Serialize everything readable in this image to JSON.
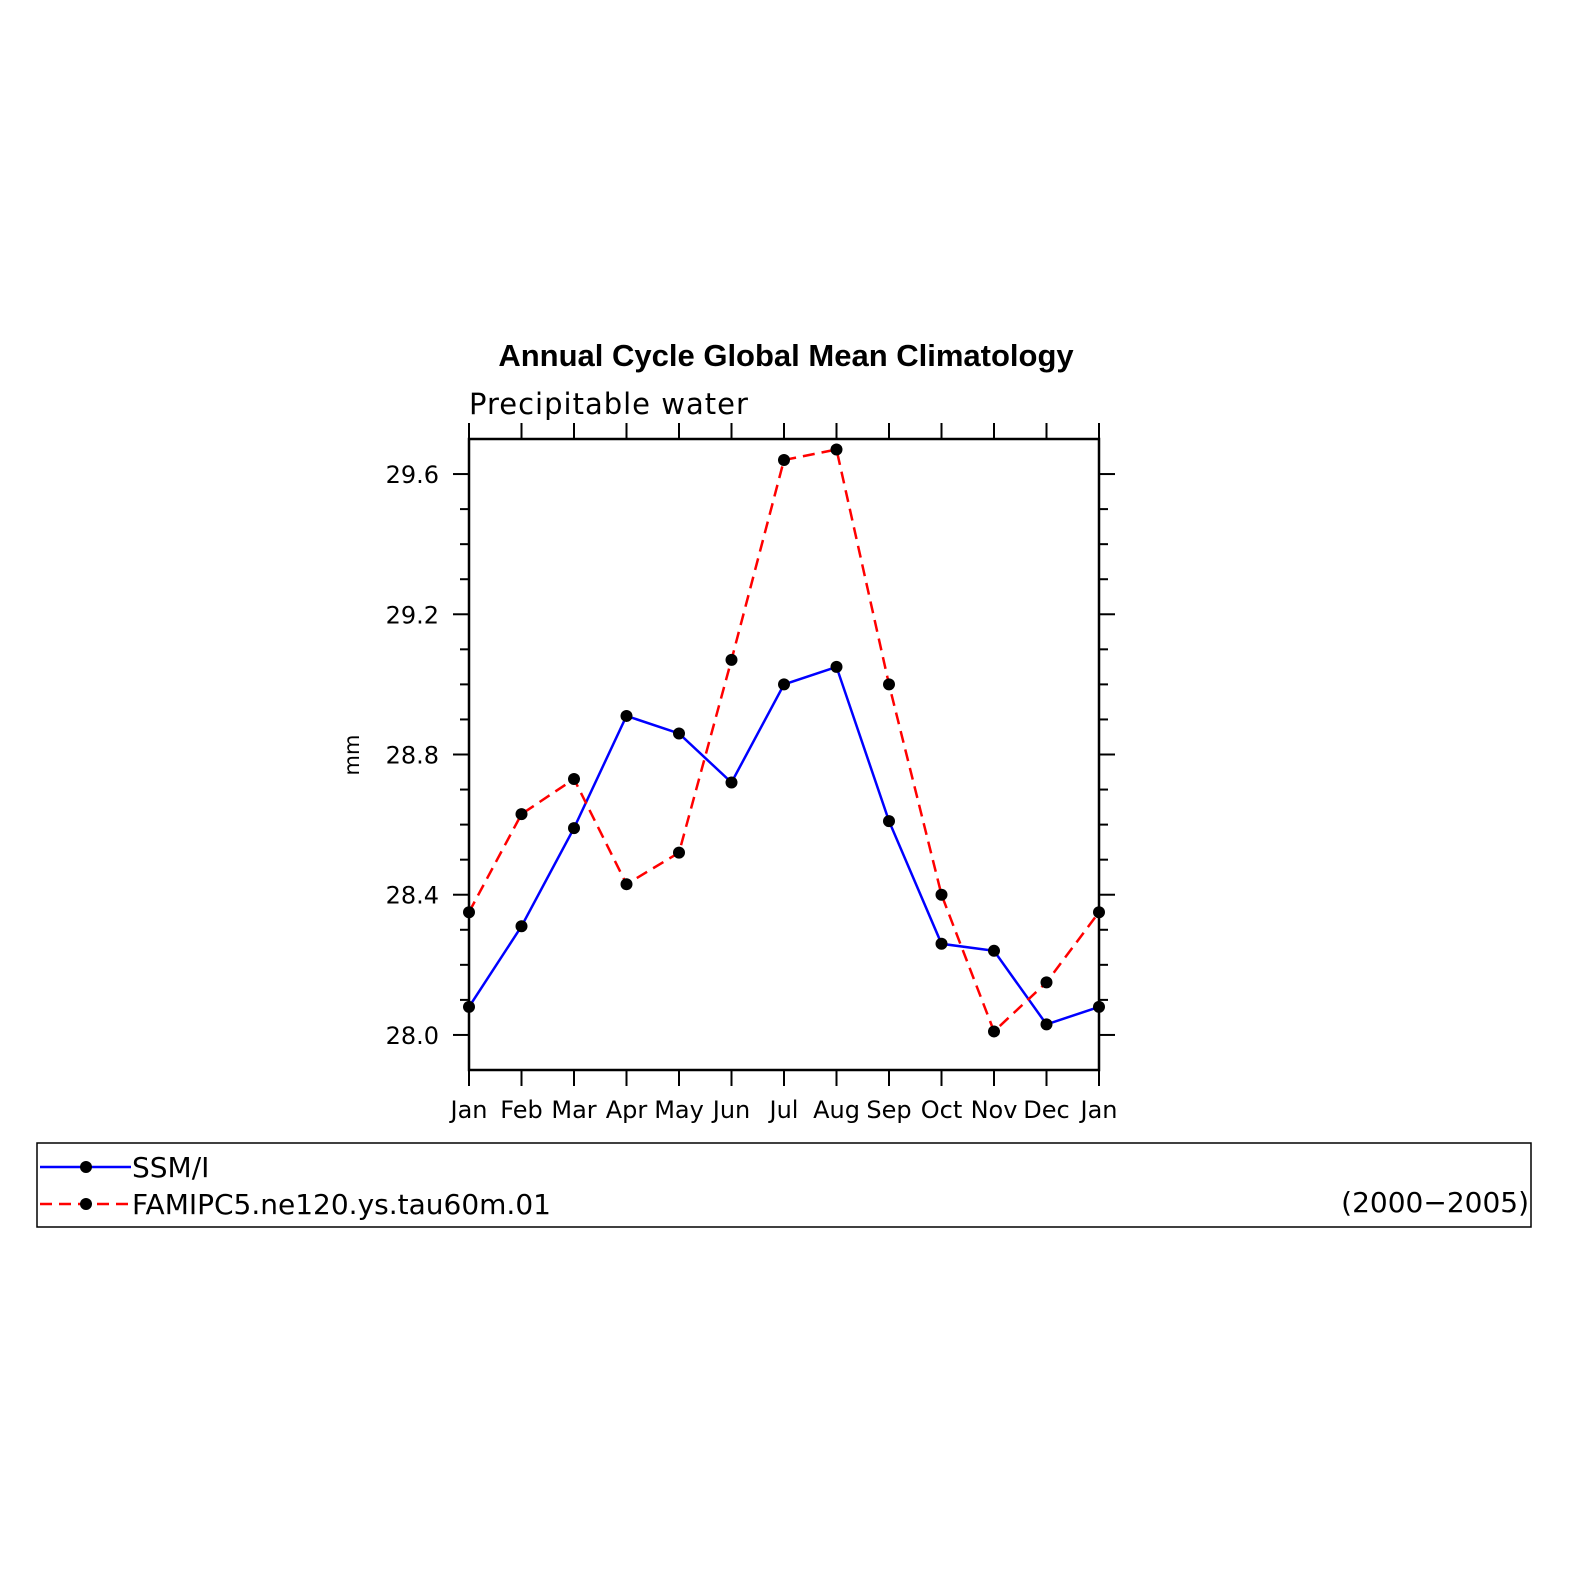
{
  "chart_data": {
    "type": "line",
    "title": "Annual Cycle Global Mean Climatology",
    "subtitle": "Precipitable water",
    "xlabel": "",
    "ylabel": "mm",
    "categories": [
      "Jan",
      "Feb",
      "Mar",
      "Apr",
      "May",
      "Jun",
      "Jul",
      "Aug",
      "Sep",
      "Oct",
      "Nov",
      "Dec",
      "Jan"
    ],
    "ylim": [
      27.9,
      29.7
    ],
    "yticks": [
      "28.0",
      "28.4",
      "28.8",
      "29.2",
      "29.6"
    ],
    "ytick_values": [
      28.0,
      28.4,
      28.8,
      29.2,
      29.6
    ],
    "grid": false,
    "legend_placement": "bottom",
    "series": [
      {
        "name": "SSM/I",
        "color": "#0000ff",
        "style": "solid",
        "values": [
          28.08,
          28.31,
          28.59,
          28.91,
          28.86,
          28.72,
          29.0,
          29.05,
          28.61,
          28.26,
          28.24,
          28.03,
          28.08
        ]
      },
      {
        "name": "FAMIPC5.ne120.ys.tau60m.01",
        "color": "#ff0000",
        "style": "dashed",
        "values": [
          28.35,
          28.63,
          28.73,
          28.43,
          28.52,
          29.07,
          29.64,
          29.67,
          29.0,
          28.4,
          28.01,
          28.15,
          28.35
        ]
      }
    ],
    "legend_note": "(2000−2005)"
  }
}
